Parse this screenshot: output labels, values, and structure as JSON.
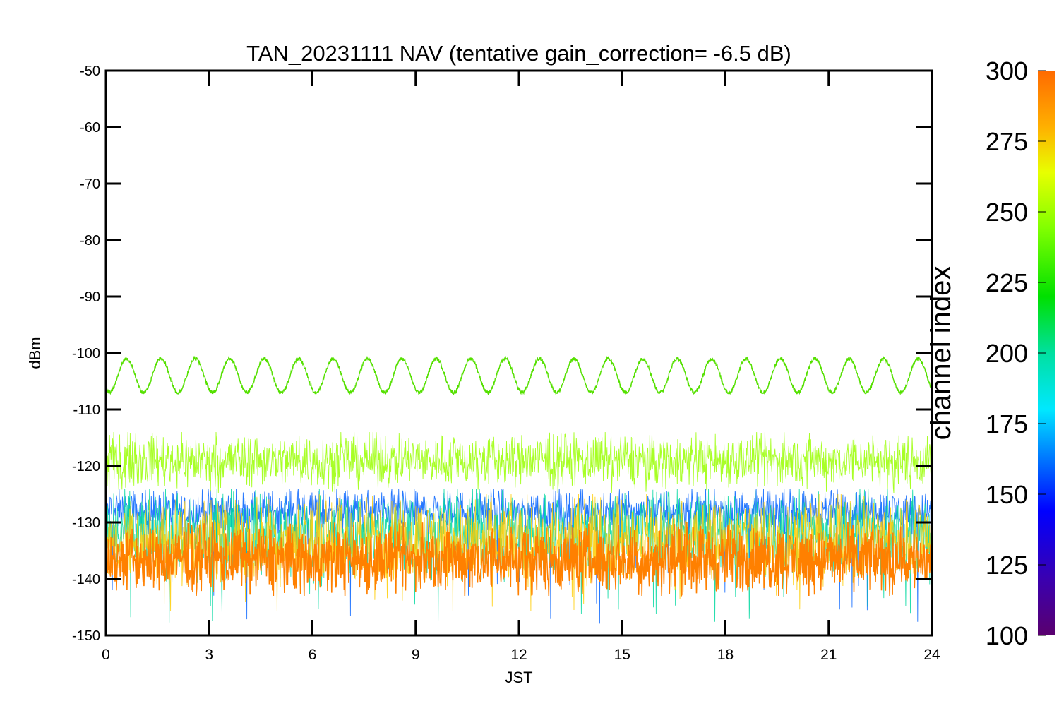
{
  "chart_data": {
    "type": "line",
    "title": "TAN_20231111 NAV (tentative gain_correction= -6.5 dB)",
    "xlabel": "JST",
    "ylabel": "dBm",
    "xlim": [
      0,
      24
    ],
    "ylim": [
      -150,
      -50
    ],
    "x_ticks": [
      0,
      3,
      6,
      9,
      12,
      15,
      18,
      21,
      24
    ],
    "y_ticks": [
      -50,
      -60,
      -70,
      -80,
      -90,
      -100,
      -110,
      -120,
      -130,
      -140,
      -150
    ],
    "grid": false,
    "colorbar": {
      "label": "channel index",
      "range": [
        100,
        300
      ],
      "ticks": [
        100,
        125,
        150,
        175,
        200,
        225,
        250,
        275,
        300
      ],
      "colormap": "rainbow"
    },
    "series": [
      {
        "channel": 245,
        "color": "#55e000",
        "pattern": "sinusoid",
        "center": -104,
        "amplitude": 3,
        "period_hours": 1,
        "x": [
          0,
          24
        ]
      },
      {
        "channel": 262,
        "color": "#99ff00",
        "pattern": "noise-band",
        "center": -119,
        "low": -125,
        "high": -114,
        "x": [
          0,
          24
        ]
      },
      {
        "channel": 150,
        "color": "#0060ff",
        "pattern": "noise-band",
        "center": -128,
        "low": -148,
        "high": -124,
        "x": [
          0,
          24
        ]
      },
      {
        "channel": 195,
        "color": "#00d8a0",
        "pattern": "noise-band",
        "center": -132,
        "low": -148,
        "high": -124,
        "x": [
          0,
          24
        ]
      },
      {
        "channel": 280,
        "color": "#ffcc00",
        "pattern": "noise-band",
        "center": -133,
        "low": -146,
        "high": -125,
        "x": [
          0,
          24
        ]
      },
      {
        "channel": 295,
        "color": "#ff8000",
        "pattern": "noise-band",
        "center": -136.5,
        "low": -143,
        "high": -130,
        "x": [
          0,
          24
        ]
      }
    ]
  }
}
